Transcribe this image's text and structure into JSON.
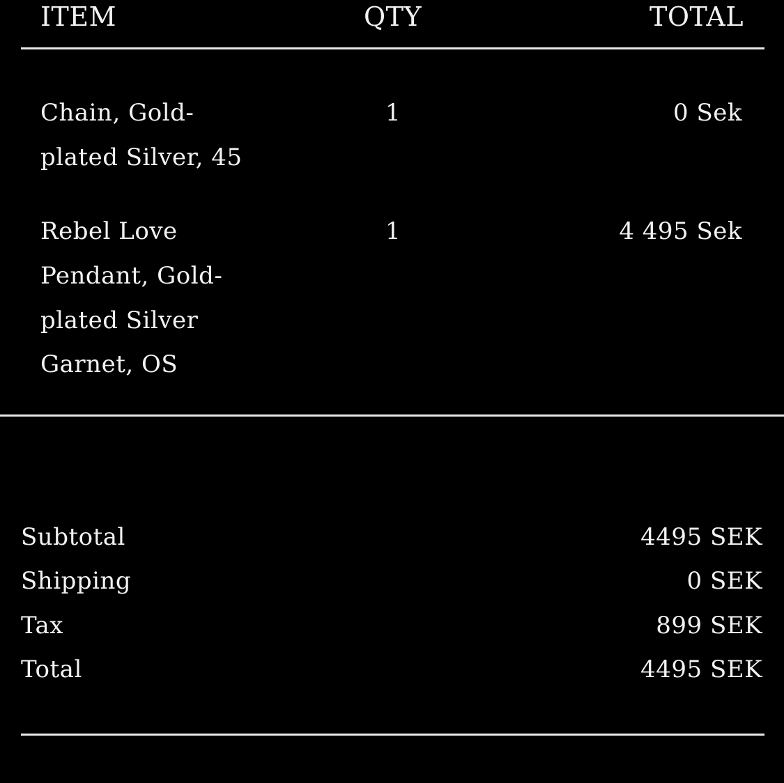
{
  "header": {
    "item": "ITEM",
    "qty": "QTY",
    "total": "TOTAL"
  },
  "items": [
    {
      "name_lines": [
        "Chain, Gold-",
        "plated Silver, 45"
      ],
      "qty": "1",
      "total": "0 Sek"
    },
    {
      "name_lines": [
        "Rebel Love",
        "Pendant, Gold-",
        "plated Silver",
        "Garnet, OS"
      ],
      "qty": "1",
      "total": "4 495 Sek"
    }
  ],
  "summary": [
    {
      "label": "Subtotal",
      "value": "4495 SEK"
    },
    {
      "label": "Shipping",
      "value": "0 SEK"
    },
    {
      "label": "Tax",
      "value": "899 SEK"
    },
    {
      "label": "Total",
      "value": "4495 SEK"
    }
  ]
}
